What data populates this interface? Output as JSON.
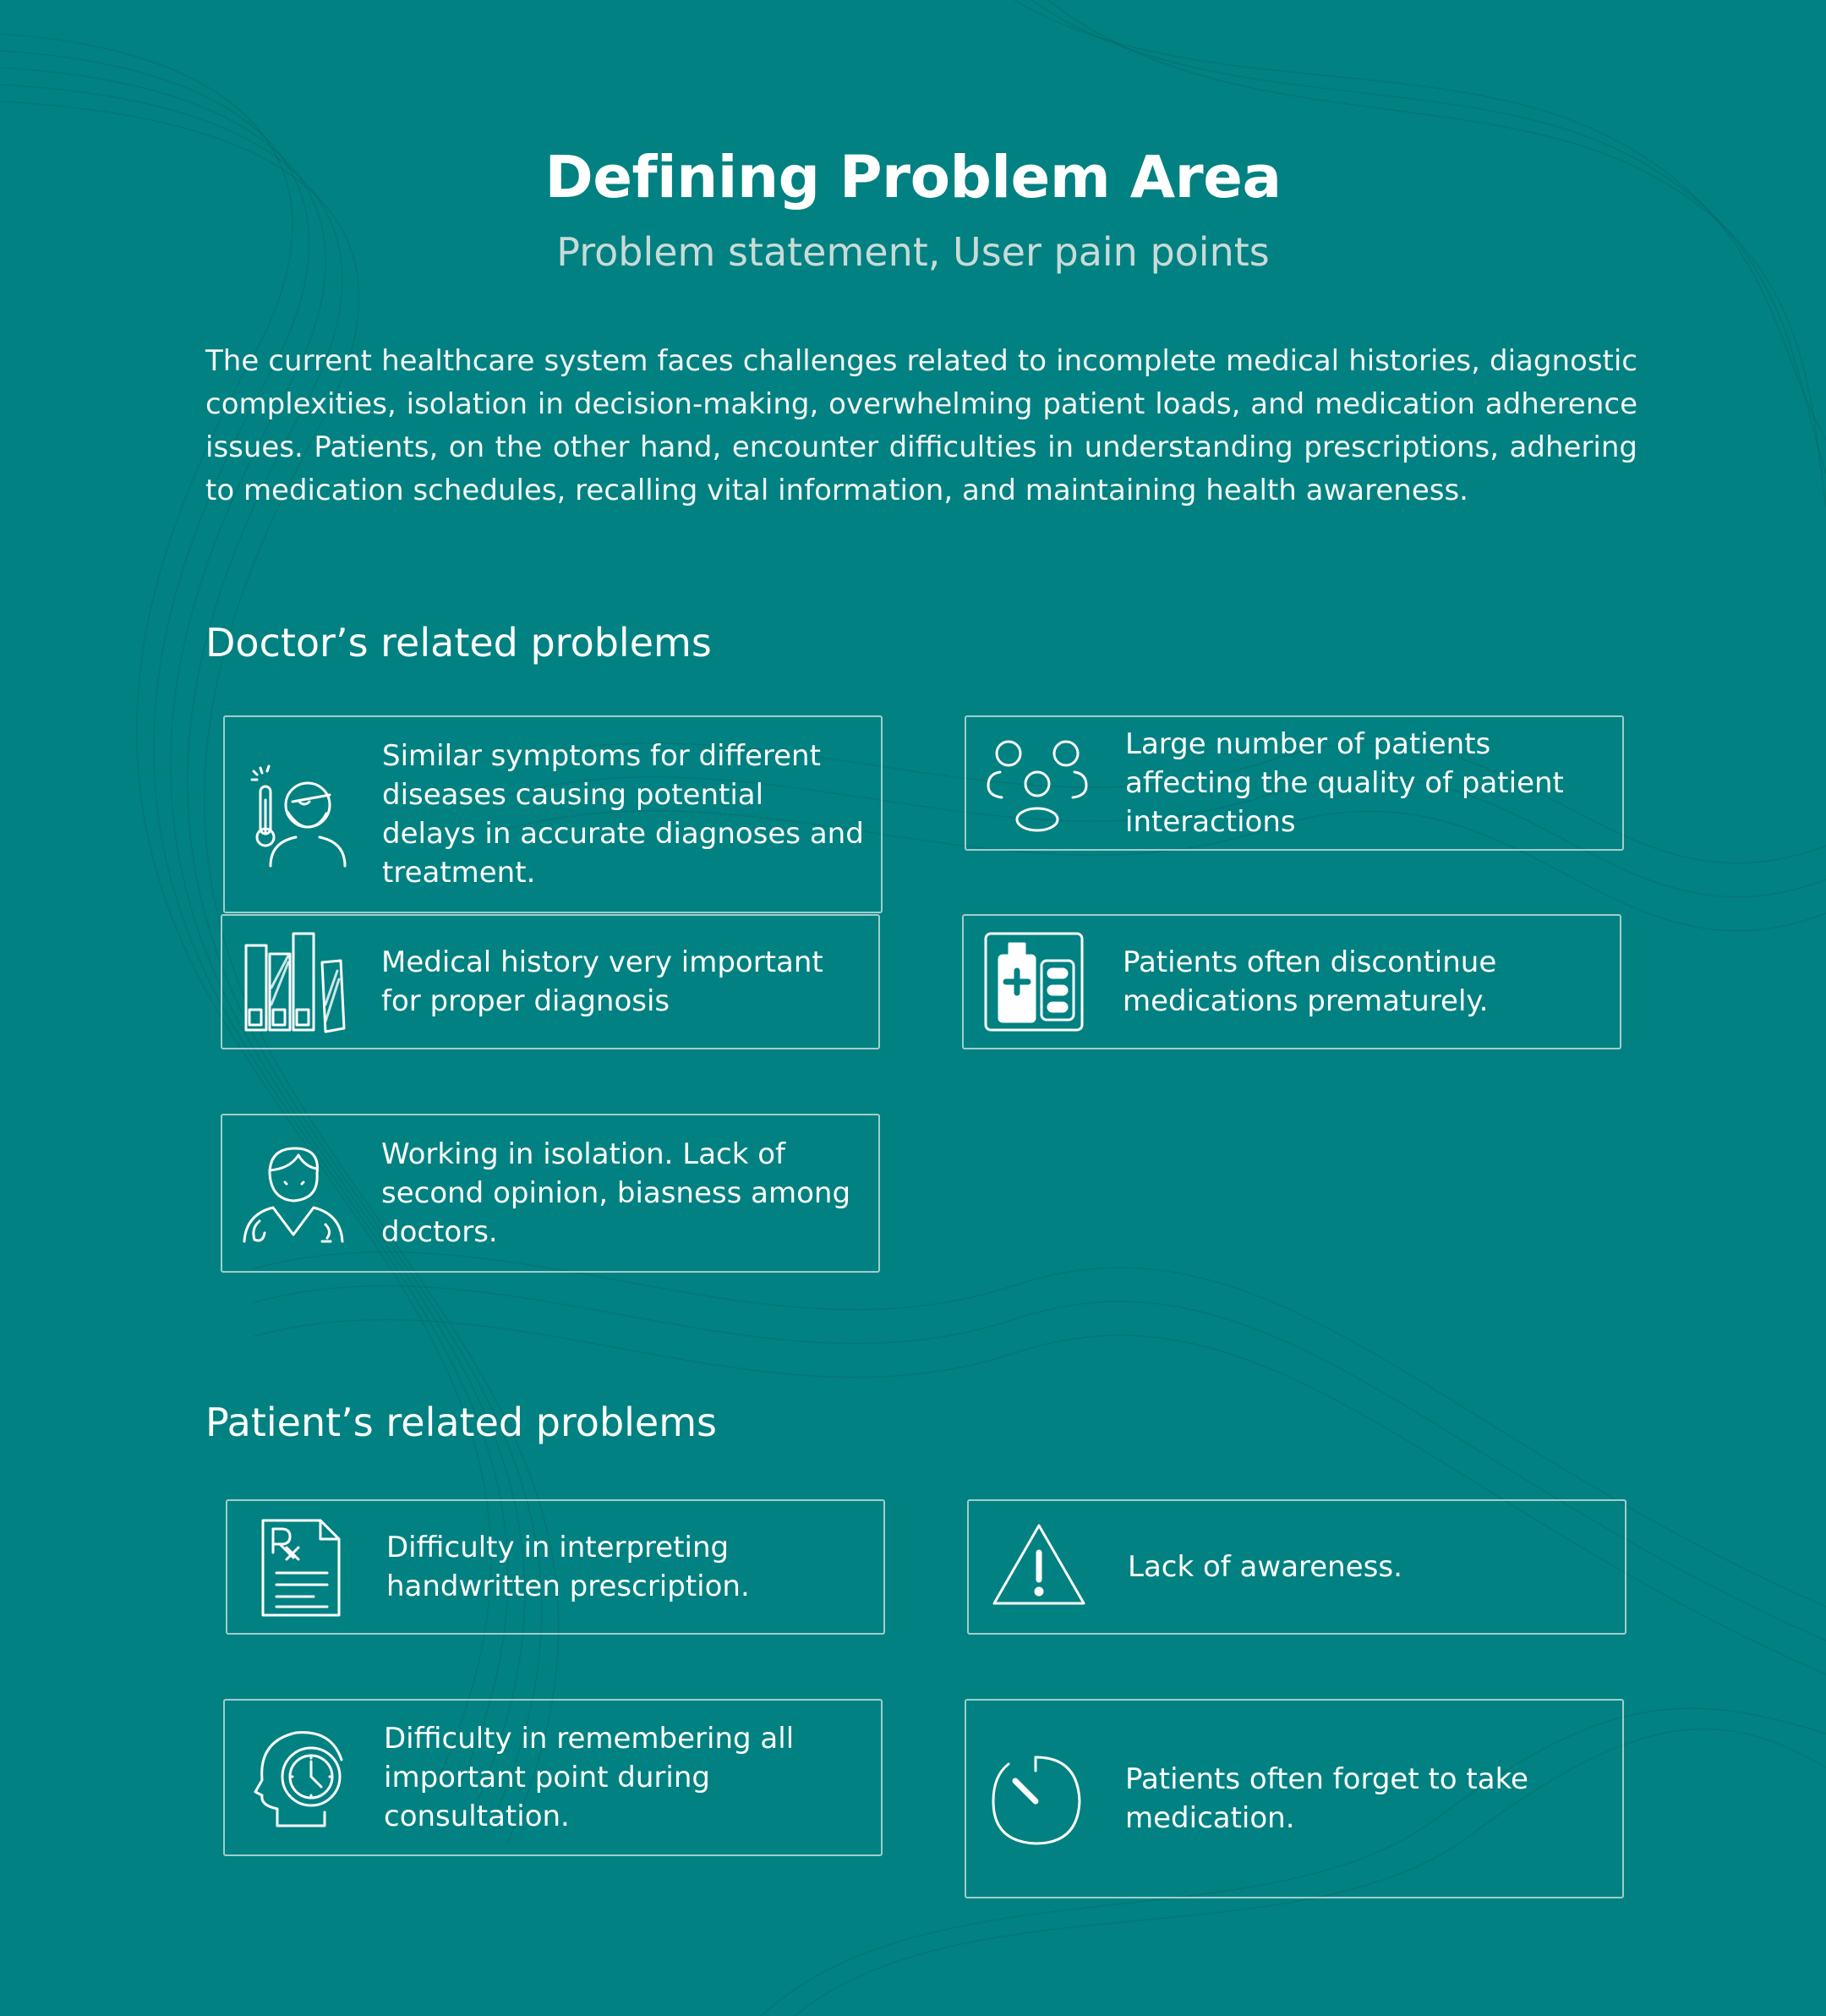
{
  "header": {
    "title": "Defining Problem Area",
    "subtitle": "Problem statement, User pain points"
  },
  "intro": "The current healthcare system faces challenges related to incomplete medical histories, diagnostic complexities, isolation in decision-making, overwhelming patient loads, and medication adherence issues. Patients, on the other hand, encounter difficulties in understanding prescriptions, adhering to medication schedules, recalling vital information, and maintaining health awareness.",
  "doctor_section": {
    "heading": "Doctor’s related problems",
    "cards": [
      {
        "icon": "sick-person-thermometer-icon",
        "text": "Similar symptoms for different diseases causing potential delays in accurate diagnoses and treatment."
      },
      {
        "icon": "patients-group-icon",
        "text": "Large number of patients affecting the quality of patient interactions"
      },
      {
        "icon": "medical-records-icon",
        "text": "Medical history very important for proper diagnosis"
      },
      {
        "icon": "medicine-bottle-pills-icon",
        "text": "Patients often discontinue medications prematurely."
      },
      {
        "icon": "doctor-icon",
        "text": "Working in isolation. Lack of second opinion, biasness among doctors."
      }
    ]
  },
  "patient_section": {
    "heading": "Patient’s related problems",
    "cards": [
      {
        "icon": "prescription-icon",
        "text": "Difficulty in interpreting handwritten prescription."
      },
      {
        "icon": "warning-icon",
        "text": "Lack of awareness."
      },
      {
        "icon": "head-clock-icon",
        "text": "Difficulty in remembering all important point during consultation."
      },
      {
        "icon": "timer-icon",
        "text": "Patients often forget to take medication."
      }
    ]
  },
  "colors": {
    "background": "#018181",
    "card_border": "#d6e8e5",
    "text": "#ffffff",
    "subtitle": "#c9dbd8"
  }
}
